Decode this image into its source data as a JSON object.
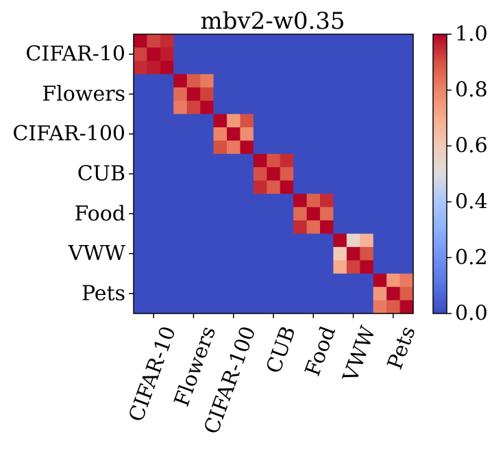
{
  "chart_data": {
    "type": "heatmap",
    "title": "mbv2-w0.35",
    "block_labels": [
      "CIFAR-10",
      "Flowers",
      "CIFAR-100",
      "CUB",
      "Food",
      "VWW",
      "Pets"
    ],
    "cells_per_block": 3,
    "off_block_value": 0.0,
    "block_values": [
      [
        [
          1.0,
          0.92,
          0.95
        ],
        [
          0.92,
          1.0,
          0.97
        ],
        [
          0.95,
          0.97,
          1.0
        ]
      ],
      [
        [
          1.0,
          0.88,
          0.82
        ],
        [
          0.85,
          1.0,
          0.92
        ],
        [
          0.82,
          0.92,
          1.0
        ]
      ],
      [
        [
          1.0,
          0.75,
          0.9
        ],
        [
          0.8,
          1.0,
          0.78
        ],
        [
          0.9,
          0.82,
          1.0
        ]
      ],
      [
        [
          1.0,
          0.9,
          0.95
        ],
        [
          0.9,
          1.0,
          0.88
        ],
        [
          0.95,
          0.88,
          1.0
        ]
      ],
      [
        [
          1.0,
          0.87,
          0.95
        ],
        [
          0.85,
          1.0,
          0.85
        ],
        [
          0.95,
          0.85,
          1.0
        ]
      ],
      [
        [
          1.0,
          0.55,
          0.68
        ],
        [
          0.6,
          1.0,
          0.9
        ],
        [
          0.7,
          0.92,
          1.0
        ]
      ],
      [
        [
          1.0,
          0.75,
          0.82
        ],
        [
          0.75,
          1.0,
          0.88
        ],
        [
          0.82,
          0.88,
          1.0
        ]
      ]
    ],
    "colorbar": {
      "colormap": "coolwarm",
      "range": [
        0.0,
        1.0
      ],
      "ticks": [
        "0.0",
        "0.2",
        "0.4",
        "0.6",
        "0.8",
        "1.0"
      ]
    }
  }
}
